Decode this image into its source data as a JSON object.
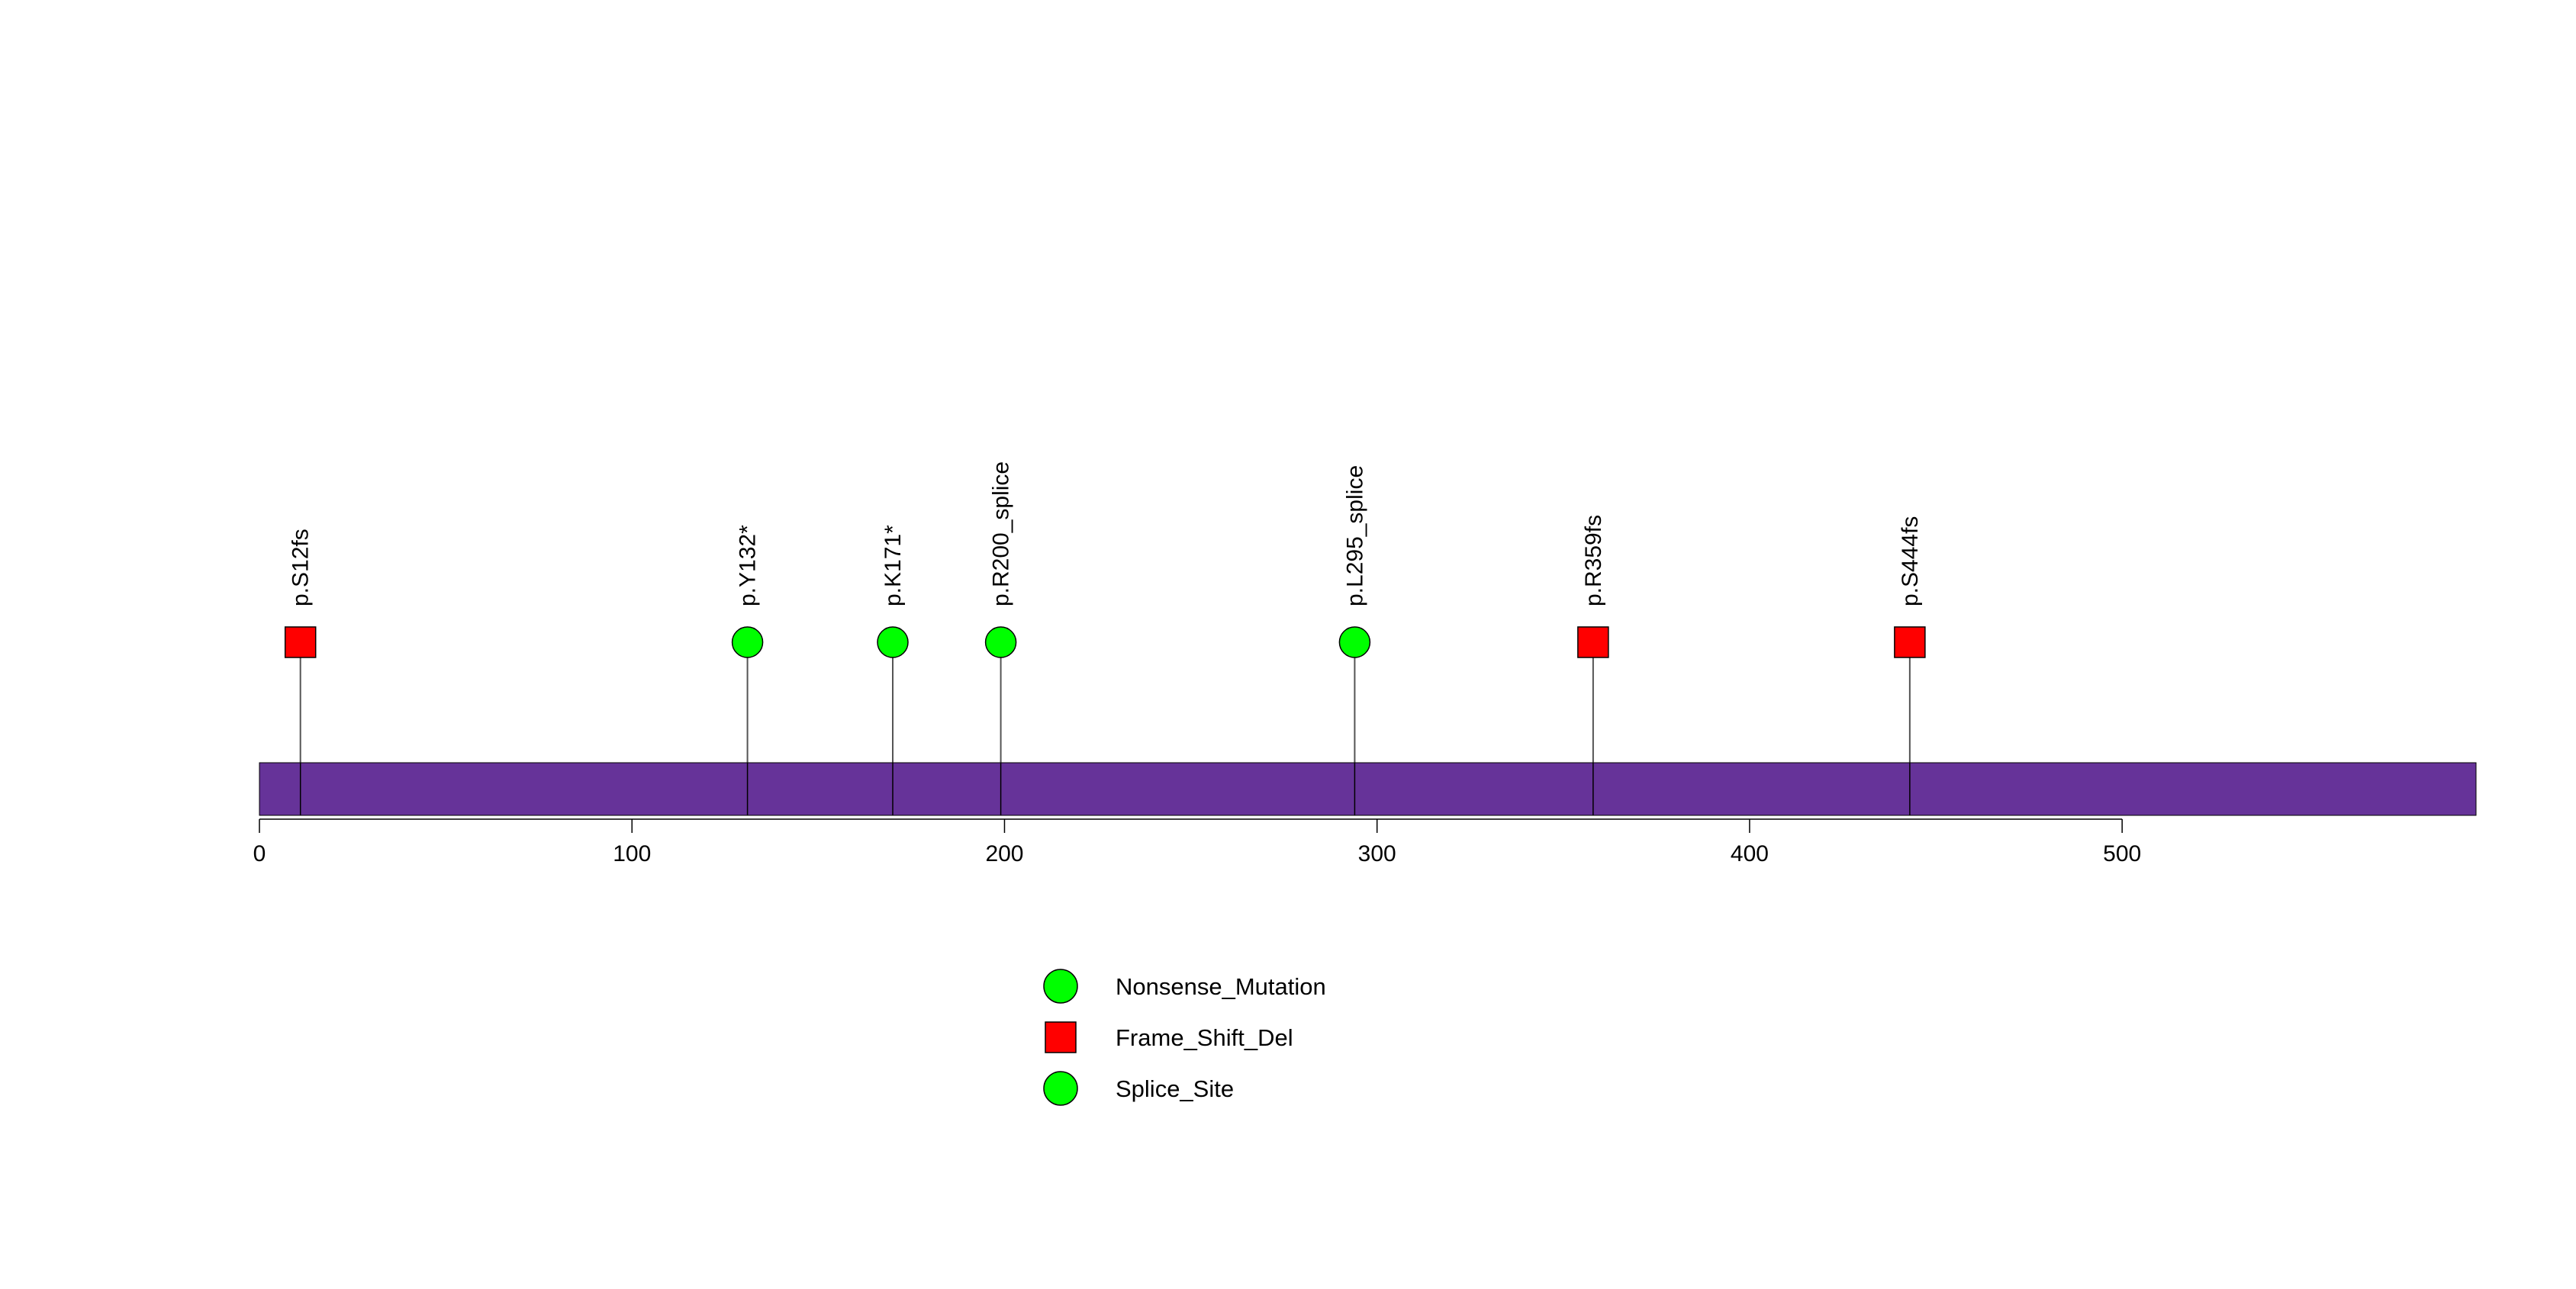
{
  "chart_data": {
    "type": "lollipop",
    "title": "",
    "xlabel": "",
    "ylabel": "",
    "protein_length": 595,
    "xlim": [
      0,
      595
    ],
    "x_ticks": [
      {
        "value": 0,
        "label": "0"
      },
      {
        "value": 100,
        "label": "100"
      },
      {
        "value": 200,
        "label": "200"
      },
      {
        "value": 300,
        "label": "300"
      },
      {
        "value": 400,
        "label": "400"
      },
      {
        "value": 500,
        "label": "500"
      }
    ],
    "protein_bar_color": "#663399",
    "mutations": [
      {
        "position": 11,
        "label": "p.S12fs",
        "type": "Frame_Shift_Del"
      },
      {
        "position": 131,
        "label": "p.Y132*",
        "type": "Nonsense_Mutation"
      },
      {
        "position": 170,
        "label": "p.K171*",
        "type": "Nonsense_Mutation"
      },
      {
        "position": 199,
        "label": "p.R200_splice",
        "type": "Splice_Site"
      },
      {
        "position": 294,
        "label": "p.L295_splice",
        "type": "Splice_Site"
      },
      {
        "position": 358,
        "label": "p.R359fs",
        "type": "Frame_Shift_Del"
      },
      {
        "position": 443,
        "label": "p.S444fs",
        "type": "Frame_Shift_Del"
      }
    ],
    "legend": [
      {
        "label": "Nonsense_Mutation",
        "shape": "circle",
        "color": "#00ff00"
      },
      {
        "label": "Frame_Shift_Del",
        "shape": "square",
        "color": "#ff0000"
      },
      {
        "label": "Splice_Site",
        "shape": "circle",
        "color": "#00ff00"
      }
    ],
    "legend_placement": "bottom-center"
  }
}
